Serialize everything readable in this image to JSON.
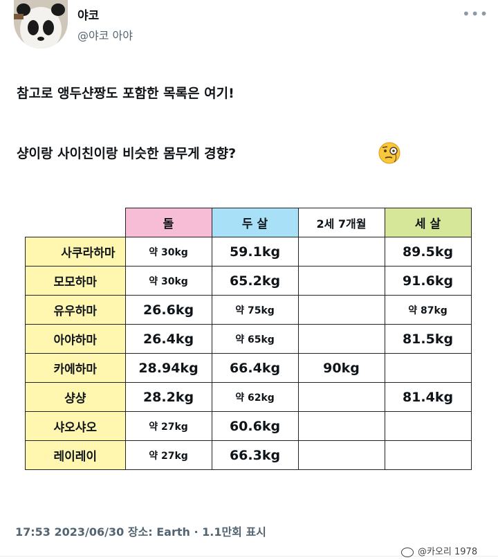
{
  "tweet": {
    "display_name": "야코",
    "handle": "@야코 아야",
    "more": "•••",
    "line1": "참고로 앵두샨짱도 포함한 목록은 여기!",
    "line2": "샹이랑 사이친이랑 비슷한 몸무게 경향?",
    "emoji": "face-with-monocle"
  },
  "table": {
    "headers": [
      "돌",
      "두 살",
      "2세 7개월",
      "세 살"
    ],
    "rows": [
      {
        "name": "사쿠라하마",
        "cells": [
          "약 30kg",
          "59.1kg",
          "",
          "89.5kg"
        ]
      },
      {
        "name": "모모하마",
        "cells": [
          "약 30kg",
          "65.2kg",
          "",
          "91.6kg"
        ]
      },
      {
        "name": "유우하마",
        "cells": [
          "26.6kg",
          "약 75kg",
          "",
          "약 87kg"
        ]
      },
      {
        "name": "아야하마",
        "cells": [
          "26.4kg",
          "약 65kg",
          "",
          "81.5kg"
        ]
      },
      {
        "name": "카에하마",
        "cells": [
          "28.94kg",
          "66.4kg",
          "90kg",
          ""
        ]
      },
      {
        "name": "샹샹",
        "cells": [
          "28.2kg",
          "약 62kg",
          "",
          "81.4kg"
        ]
      },
      {
        "name": "샤오샤오",
        "cells": [
          "약 27kg",
          "60.6kg",
          "",
          ""
        ]
      },
      {
        "name": "레이레이",
        "cells": [
          "약 27kg",
          "66.3kg",
          "",
          ""
        ]
      }
    ]
  },
  "footer": {
    "meta": "17:53 2023/06/30 장소: Earth · 1.1만회 표시"
  },
  "watermark": "@카오리 1978",
  "colors": {
    "pink": "#f7bcd6",
    "blue": "#a8e1f7",
    "green": "#d6e79a",
    "yellow": "#fff7b0"
  }
}
